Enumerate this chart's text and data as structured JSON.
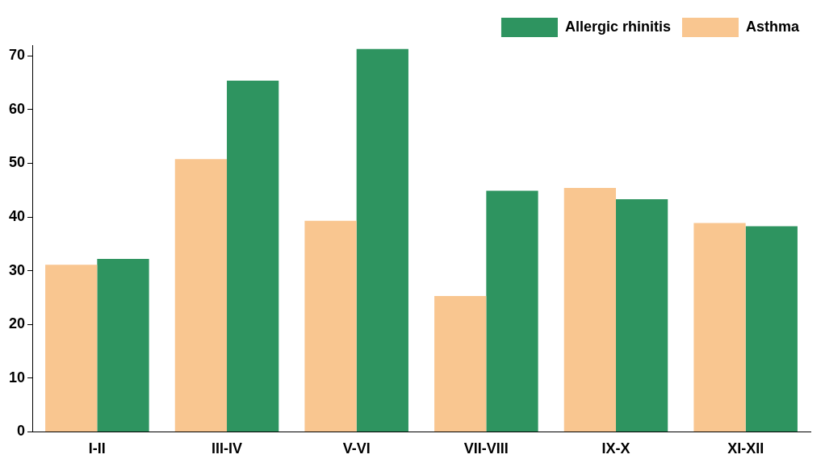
{
  "chart_data": {
    "type": "bar",
    "categories": [
      "I-II",
      "III-IV",
      "V-VI",
      "VII-VIII",
      "IX-X",
      "XI-XII"
    ],
    "series": [
      {
        "name": "Asthma",
        "color": "#f9c690",
        "values": [
          31.1,
          50.8,
          39.3,
          25.3,
          45.4,
          38.9
        ]
      },
      {
        "name": "Allergic rhinitis",
        "color": "#2e9460",
        "values": [
          32.2,
          65.4,
          71.3,
          44.9,
          43.3,
          38.3
        ]
      }
    ],
    "ylim": [
      0,
      72
    ],
    "yticks": [
      0,
      10,
      20,
      30,
      40,
      50,
      60,
      70
    ],
    "grid": false,
    "legend": "top right"
  }
}
